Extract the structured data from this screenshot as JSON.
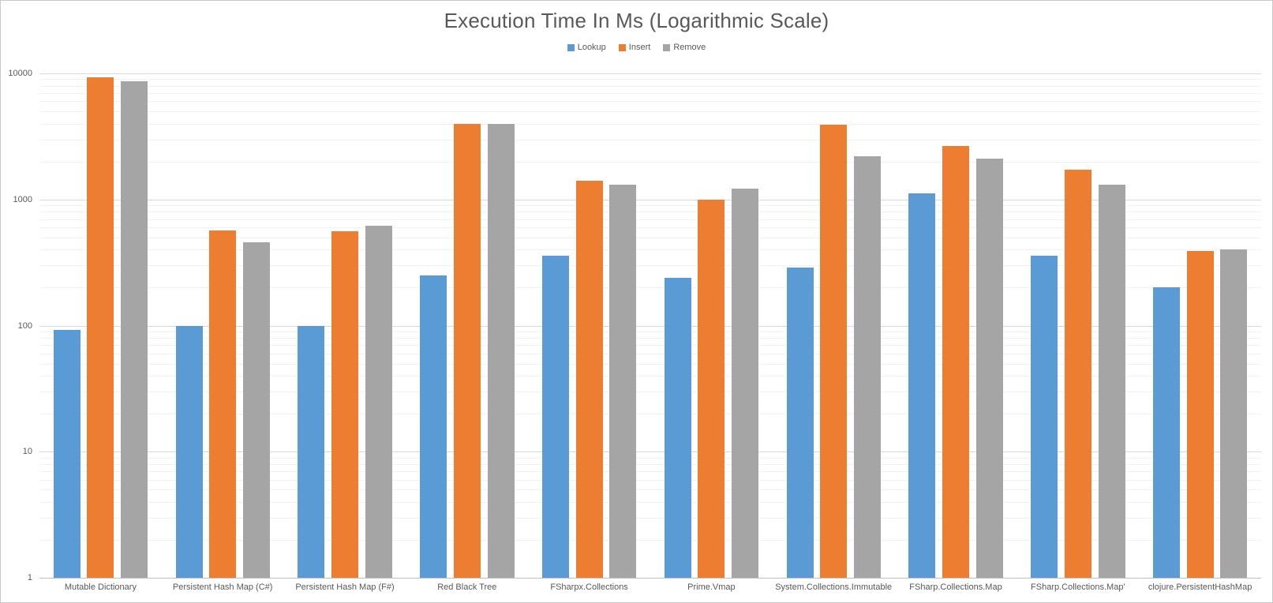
{
  "chart": {
    "title": "Execution Time In Ms (Logarithmic Scale)"
  },
  "chart_data": {
    "type": "bar",
    "scale": "logarithmic",
    "title": "Execution Time In Ms (Logarithmic Scale)",
    "xlabel": "",
    "ylabel": "",
    "ylim": [
      1,
      10000
    ],
    "ytick_labels": [
      "1",
      "10",
      "100",
      "1000",
      "10000"
    ],
    "grid": true,
    "legend_position": "top-center",
    "categories": [
      "Mutable Dictionary",
      "Persistent Hash Map (C#)",
      "Persistent Hash Map (F#)",
      "Red Black Tree",
      "FSharpx.Collections",
      "Prime.Vmap",
      "System.Collections.Immutable",
      "FSharp.Collections.Map",
      "FSharp.Collections.Map'",
      "clojure.PersistentHashMap"
    ],
    "series": [
      {
        "name": "Lookup",
        "color": "#5B9BD5",
        "values": [
          92,
          100,
          100,
          250,
          360,
          240,
          290,
          1120,
          360,
          200
        ]
      },
      {
        "name": "Insert",
        "color": "#ED7D31",
        "values": [
          9300,
          570,
          560,
          4000,
          1400,
          1000,
          3900,
          2650,
          1730,
          390
        ]
      },
      {
        "name": "Remove",
        "color": "#A5A5A5",
        "values": [
          8700,
          460,
          620,
          4000,
          1310,
          1220,
          2200,
          2100,
          1320,
          400
        ]
      }
    ]
  },
  "colors": {
    "title_text": "#595959",
    "axis_text": "#595959",
    "grid_major": "#D9D9D9",
    "grid_minor": "#F2F2F2",
    "axis_line": "#BFBFBF",
    "background": "#FFFFFF",
    "border": "#C9C9C9"
  }
}
